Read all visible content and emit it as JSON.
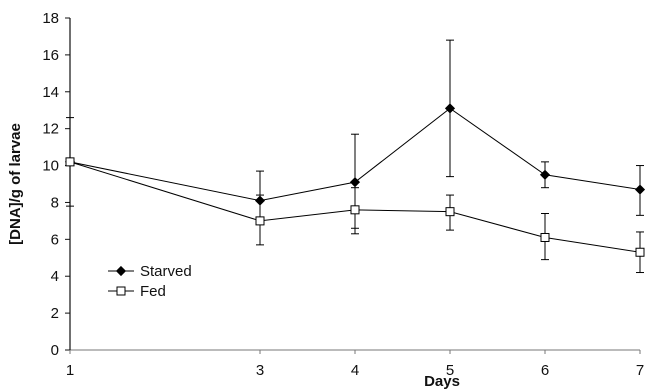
{
  "chart_data": {
    "type": "line",
    "title": "",
    "xlabel": "Days",
    "ylabel": "[DNA]/g of larvae",
    "xlim": [
      1,
      7
    ],
    "ylim": [
      0,
      18
    ],
    "x_ticks": [
      "1",
      "3",
      "4",
      "5",
      "6",
      "7"
    ],
    "y_ticks": [
      "0",
      "2",
      "4",
      "6",
      "8",
      "10",
      "12",
      "14",
      "16",
      "18"
    ],
    "grid": false,
    "legend_position": "lower-left",
    "series": [
      {
        "name": "Starved",
        "marker": "filled-diamond",
        "color": "#000000",
        "x": [
          1,
          3,
          4,
          5,
          6,
          7
        ],
        "y": [
          10.2,
          8.1,
          9.1,
          13.1,
          9.5,
          8.7
        ],
        "error_low": [
          7.8,
          6.8,
          6.6,
          9.4,
          8.8,
          7.3
        ],
        "error_high": [
          12.6,
          9.7,
          11.7,
          16.8,
          10.2,
          10.0
        ]
      },
      {
        "name": "Fed",
        "marker": "open-square",
        "color": "#000000",
        "x": [
          1,
          3,
          4,
          5,
          6,
          7
        ],
        "y": [
          10.2,
          7.0,
          7.6,
          7.5,
          6.1,
          5.3
        ],
        "error_low": [
          10.2,
          5.7,
          6.3,
          6.5,
          4.9,
          4.2
        ],
        "error_high": [
          10.2,
          8.4,
          8.8,
          8.4,
          7.4,
          6.4
        ]
      }
    ]
  }
}
